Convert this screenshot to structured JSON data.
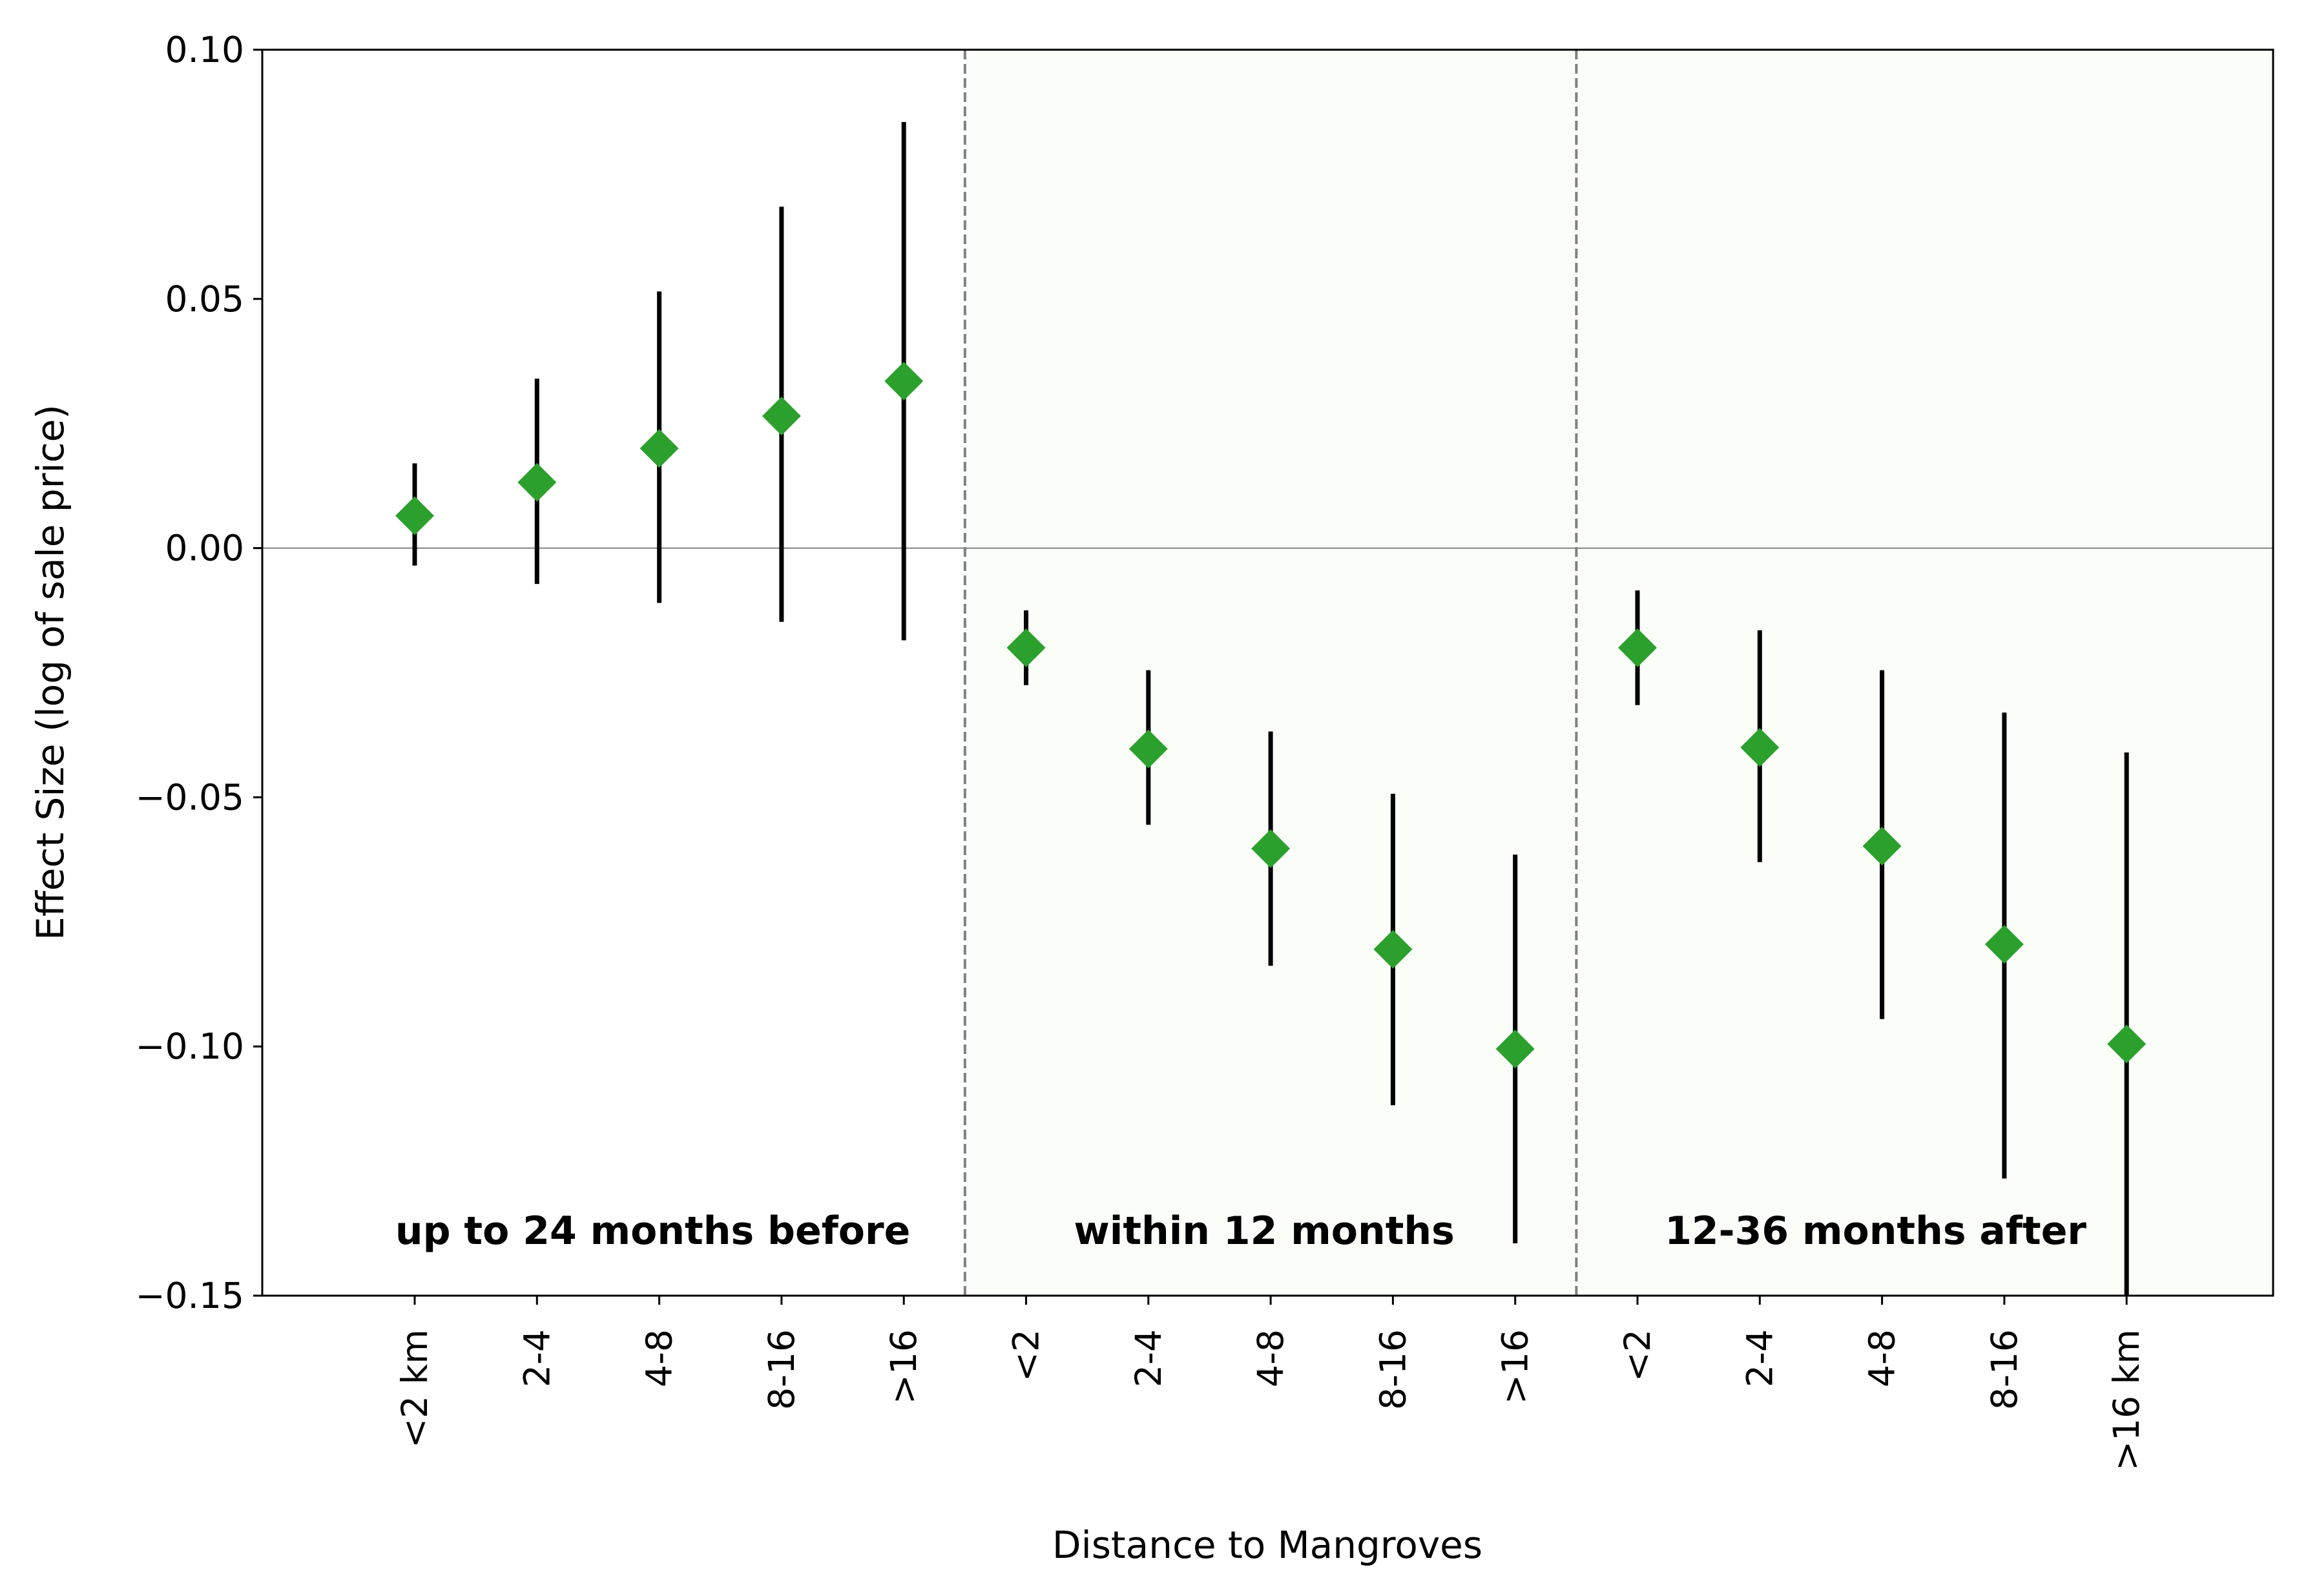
{
  "chart_data": {
    "type": "scatter",
    "variant": "point-estimates-with-error-bars",
    "title": "",
    "xlabel": "Distance to Mangroves",
    "ylabel": "Effect Size (log of sale price)",
    "ylim": [
      -0.15,
      0.1
    ],
    "yticks": [
      0.1,
      0.05,
      0.0,
      -0.05,
      -0.1,
      -0.15
    ],
    "ytick_labels": [
      "0.10",
      "0.05",
      "0.00",
      "−0.05",
      "−0.10",
      "−0.15"
    ],
    "reference_line_y": 0.0,
    "marker": "diamond",
    "marker_color": "#2ca02c",
    "errorbar_color": "#000000",
    "separator_style": "dashed",
    "separator_color": "#808080",
    "grid": false,
    "legend": "none",
    "groups": [
      {
        "label": "up to 24 months before",
        "background": "#ffffff",
        "points": [
          {
            "category": "<2 km",
            "estimate": 0.0065,
            "lower": -0.0035,
            "upper": 0.017
          },
          {
            "category": "2-4",
            "estimate": 0.0132,
            "lower": -0.0072,
            "upper": 0.034
          },
          {
            "category": "4-8",
            "estimate": 0.02,
            "lower": -0.011,
            "upper": 0.0515
          },
          {
            "category": "8-16",
            "estimate": 0.0265,
            "lower": -0.0148,
            "upper": 0.0685
          },
          {
            "category": ">16",
            "estimate": 0.0335,
            "lower": -0.0185,
            "upper": 0.0855
          }
        ]
      },
      {
        "label": "within 12 months",
        "background": "#fbfdf9",
        "points": [
          {
            "category": "<2",
            "estimate": -0.02,
            "lower": -0.0275,
            "upper": -0.0125
          },
          {
            "category": "2-4",
            "estimate": -0.0403,
            "lower": -0.0555,
            "upper": -0.0245
          },
          {
            "category": "4-8",
            "estimate": -0.0603,
            "lower": -0.0838,
            "upper": -0.0368
          },
          {
            "category": "8-16",
            "estimate": -0.0805,
            "lower": -0.1118,
            "upper": -0.0493
          },
          {
            "category": ">16",
            "estimate": -0.1005,
            "lower": -0.1395,
            "upper": -0.0615
          }
        ]
      },
      {
        "label": "12-36 months after",
        "background": "#fbfdf9",
        "points": [
          {
            "category": "<2",
            "estimate": -0.02,
            "lower": -0.0315,
            "upper": -0.0085
          },
          {
            "category": "2-4",
            "estimate": -0.04,
            "lower": -0.063,
            "upper": -0.0165
          },
          {
            "category": "4-8",
            "estimate": -0.0598,
            "lower": -0.0945,
            "upper": -0.0245
          },
          {
            "category": "8-16",
            "estimate": -0.0795,
            "lower": -0.1265,
            "upper": -0.033
          },
          {
            "category": ">16 km",
            "estimate": -0.0995,
            "lower": -0.15,
            "upper": -0.041
          }
        ]
      }
    ]
  }
}
